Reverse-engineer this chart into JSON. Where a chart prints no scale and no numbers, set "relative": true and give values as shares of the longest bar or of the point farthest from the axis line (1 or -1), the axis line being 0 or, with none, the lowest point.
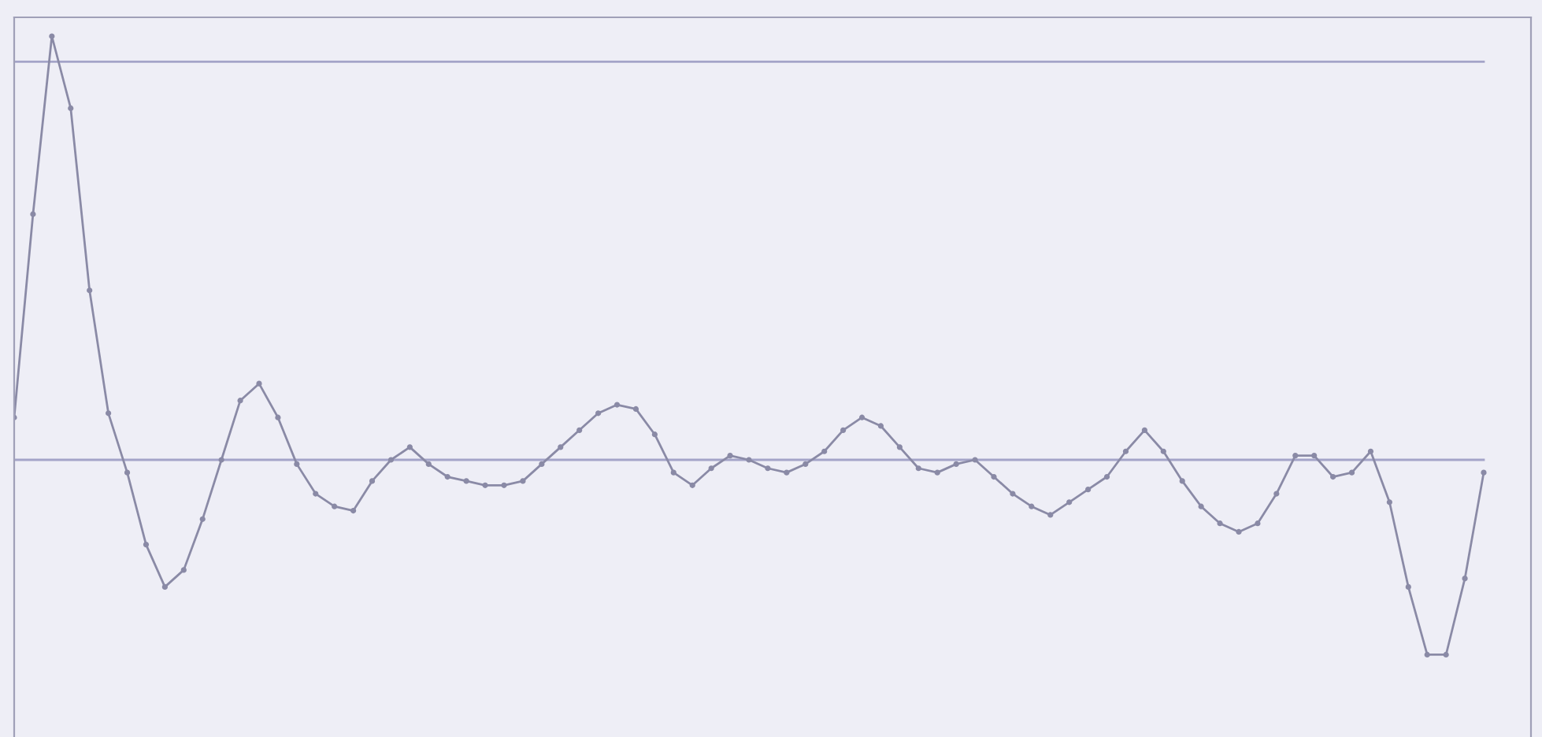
{
  "chart_data": {
    "type": "line",
    "relative": true,
    "marker": "circle",
    "legend": false,
    "categories": [
      null,
      null,
      null,
      null,
      null,
      null,
      null,
      null,
      null,
      null,
      null,
      null,
      null,
      null,
      null,
      null,
      null,
      null,
      null,
      null,
      null,
      null,
      null,
      null,
      null,
      null,
      null,
      null,
      null,
      null,
      null,
      null,
      null,
      null,
      null,
      null,
      null,
      null,
      null,
      null,
      null,
      null,
      null,
      null,
      null,
      null,
      null,
      null,
      null,
      null,
      null,
      null,
      null,
      null,
      null,
      null,
      null,
      null,
      null,
      null,
      null,
      null,
      null,
      null,
      null,
      null,
      null,
      null,
      null,
      null,
      null,
      null,
      null,
      null,
      null,
      null,
      null,
      null,
      null
    ],
    "series": [
      {
        "color": "#8a8aa6",
        "values": [
          0.1,
          0.58,
          1.0,
          0.83,
          0.4,
          0.11,
          -0.03,
          -0.2,
          -0.3,
          -0.26,
          -0.14,
          0.0,
          0.14,
          0.18,
          0.1,
          -0.01,
          -0.08,
          -0.11,
          -0.12,
          -0.05,
          0.0,
          0.03,
          -0.01,
          -0.04,
          -0.05,
          -0.06,
          -0.06,
          -0.05,
          -0.01,
          0.03,
          0.07,
          0.11,
          0.13,
          0.12,
          0.06,
          -0.03,
          -0.06,
          -0.02,
          0.01,
          0.0,
          -0.02,
          -0.03,
          -0.01,
          0.02,
          0.07,
          0.1,
          0.08,
          0.03,
          -0.02,
          -0.03,
          -0.01,
          0.0,
          -0.04,
          -0.08,
          -0.11,
          -0.13,
          -0.1,
          -0.07,
          -0.04,
          0.02,
          0.07,
          0.02,
          -0.05,
          -0.11,
          -0.15,
          -0.17,
          -0.15,
          -0.08,
          0.01,
          0.01,
          -0.04,
          -0.03,
          0.02,
          -0.1,
          -0.3,
          -0.46,
          -0.46,
          -0.28,
          -0.03
        ]
      }
    ],
    "ref_lines": [
      {
        "axis": "y",
        "value": 0.94,
        "color": "#a4a4c8"
      },
      {
        "axis": "y",
        "value": 0,
        "color": "#a4a4c8"
      }
    ]
  }
}
